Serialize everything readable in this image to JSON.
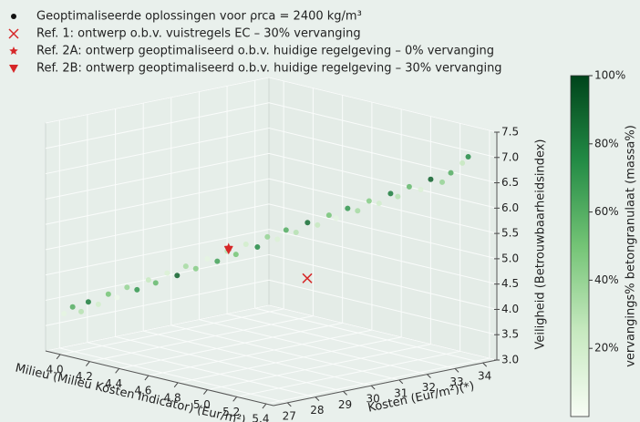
{
  "chart_data": {
    "type": "scatter3d",
    "legend_position": "upper left",
    "xlabel": "Milieu (Milieu Kosten Indicator) (Eur/m²)",
    "ylabel": "Kosten (Eur/m²)(*)",
    "zlabel": "Veiligheid (Betrouwbaarheidsindex)",
    "xlim": [
      3.9,
      5.45
    ],
    "ylim": [
      26.5,
      34.5
    ],
    "zlim": [
      3.0,
      7.5
    ],
    "xticks": [
      {
        "value": 4.0,
        "label": "4.0"
      },
      4.2,
      4.4,
      4.6,
      4.8,
      {
        "value": 5.0,
        "label": "5.0"
      },
      5.2,
      5.4
    ],
    "yticks": [
      27,
      28,
      29,
      30,
      31,
      32,
      33,
      34
    ],
    "zticks": [
      {
        "value": 3.0,
        "label": "3.0"
      },
      3.5,
      {
        "value": 4.0,
        "label": "4.0"
      },
      4.5,
      {
        "value": 5.0,
        "label": "5.0"
      },
      5.5,
      {
        "value": 6.0,
        "label": "6.0"
      },
      6.5,
      {
        "value": 7.0,
        "label": "7.0"
      },
      7.5
    ],
    "grid": true,
    "series": [
      {
        "name": "Geoptimaliseerde oplossingen voor ρrca = 2400 kg/m³",
        "marker": "circle",
        "color": "#111111",
        "x": [
          3.93,
          3.97,
          3.99,
          4.02,
          4.05,
          4.08,
          4.12,
          4.15,
          4.18,
          4.22,
          4.25,
          4.29,
          4.32,
          4.36,
          4.39,
          4.43,
          4.46,
          4.49,
          4.53,
          4.56,
          4.6,
          4.63,
          4.66,
          4.7,
          4.73,
          4.77,
          4.8,
          4.84,
          4.87,
          4.91,
          4.94,
          4.98,
          5.01,
          5.05,
          5.08,
          5.12,
          5.16,
          5.19,
          5.23,
          5.27,
          5.31,
          5.35
        ],
        "y": [
          27.0,
          27.1,
          27.3,
          27.4,
          27.6,
          27.8,
          27.9,
          28.1,
          28.3,
          28.5,
          28.6,
          28.8,
          29.0,
          29.1,
          29.3,
          29.5,
          29.7,
          29.9,
          30.0,
          30.2,
          30.4,
          30.6,
          30.8,
          30.9,
          31.1,
          31.3,
          31.5,
          31.7,
          31.8,
          32.0,
          32.2,
          32.4,
          32.6,
          32.8,
          32.9,
          33.1,
          33.3,
          33.5,
          33.7,
          33.8,
          34.0,
          34.0
        ],
        "z": [
          3.7,
          3.85,
          3.75,
          3.95,
          3.9,
          4.1,
          4.05,
          4.25,
          4.2,
          4.4,
          4.35,
          4.55,
          4.5,
          4.7,
          4.65,
          4.85,
          4.8,
          5.0,
          4.95,
          5.15,
          5.1,
          5.3,
          5.25,
          5.45,
          5.4,
          5.6,
          5.55,
          5.75,
          5.7,
          5.9,
          5.85,
          6.05,
          6.0,
          6.2,
          6.15,
          6.35,
          6.3,
          6.5,
          6.45,
          6.65,
          6.85,
          7.0
        ],
        "c": [
          10,
          60,
          30,
          80,
          20,
          50,
          5,
          40,
          70,
          25,
          55,
          15,
          90,
          35,
          45,
          10,
          65,
          30,
          50,
          20,
          75,
          40,
          15,
          60,
          30,
          85,
          25,
          50,
          10,
          70,
          35,
          45,
          20,
          80,
          30,
          55,
          15,
          90,
          40,
          60,
          25,
          75
        ]
      },
      {
        "name": "Ref. 1: ontwerp o.b.v. vuistregels EC – 30% vervanging",
        "marker": "x",
        "color": "#d62728",
        "x": [
          5.11
        ],
        "y": [
          29.5
        ],
        "z": [
          4.94
        ]
      },
      {
        "name": "Ref. 2A: ontwerp geoptimaliseerd o.b.v. huidige regelgeving – 0% vervanging",
        "marker": "star",
        "color": "#d62728",
        "x": [
          4.67
        ],
        "y": [
          29.0
        ],
        "z": [
          5.3
        ]
      },
      {
        "name": "Ref. 2B: ontwerp geoptimaliseerd o.b.v. huidige regelgeving – 30% vervanging",
        "marker": "triangle-down",
        "color": "#d62728",
        "x": [
          4.67
        ],
        "y": [
          29.0
        ],
        "z": [
          5.25
        ]
      }
    ],
    "colorbar": {
      "label": "vervangings% betongranulaat (massa%)",
      "lim": [
        0,
        100
      ],
      "colormap": [
        "#f7fcf5",
        "#c7e9c0",
        "#74c476",
        "#238b45",
        "#00441b"
      ],
      "ticks": [
        {
          "value": 20,
          "label": "20%"
        },
        {
          "value": 40,
          "label": "40%"
        },
        {
          "value": 60,
          "label": "60%"
        },
        {
          "value": 80,
          "label": "80%"
        },
        {
          "value": 100,
          "label": "100%"
        }
      ]
    }
  }
}
